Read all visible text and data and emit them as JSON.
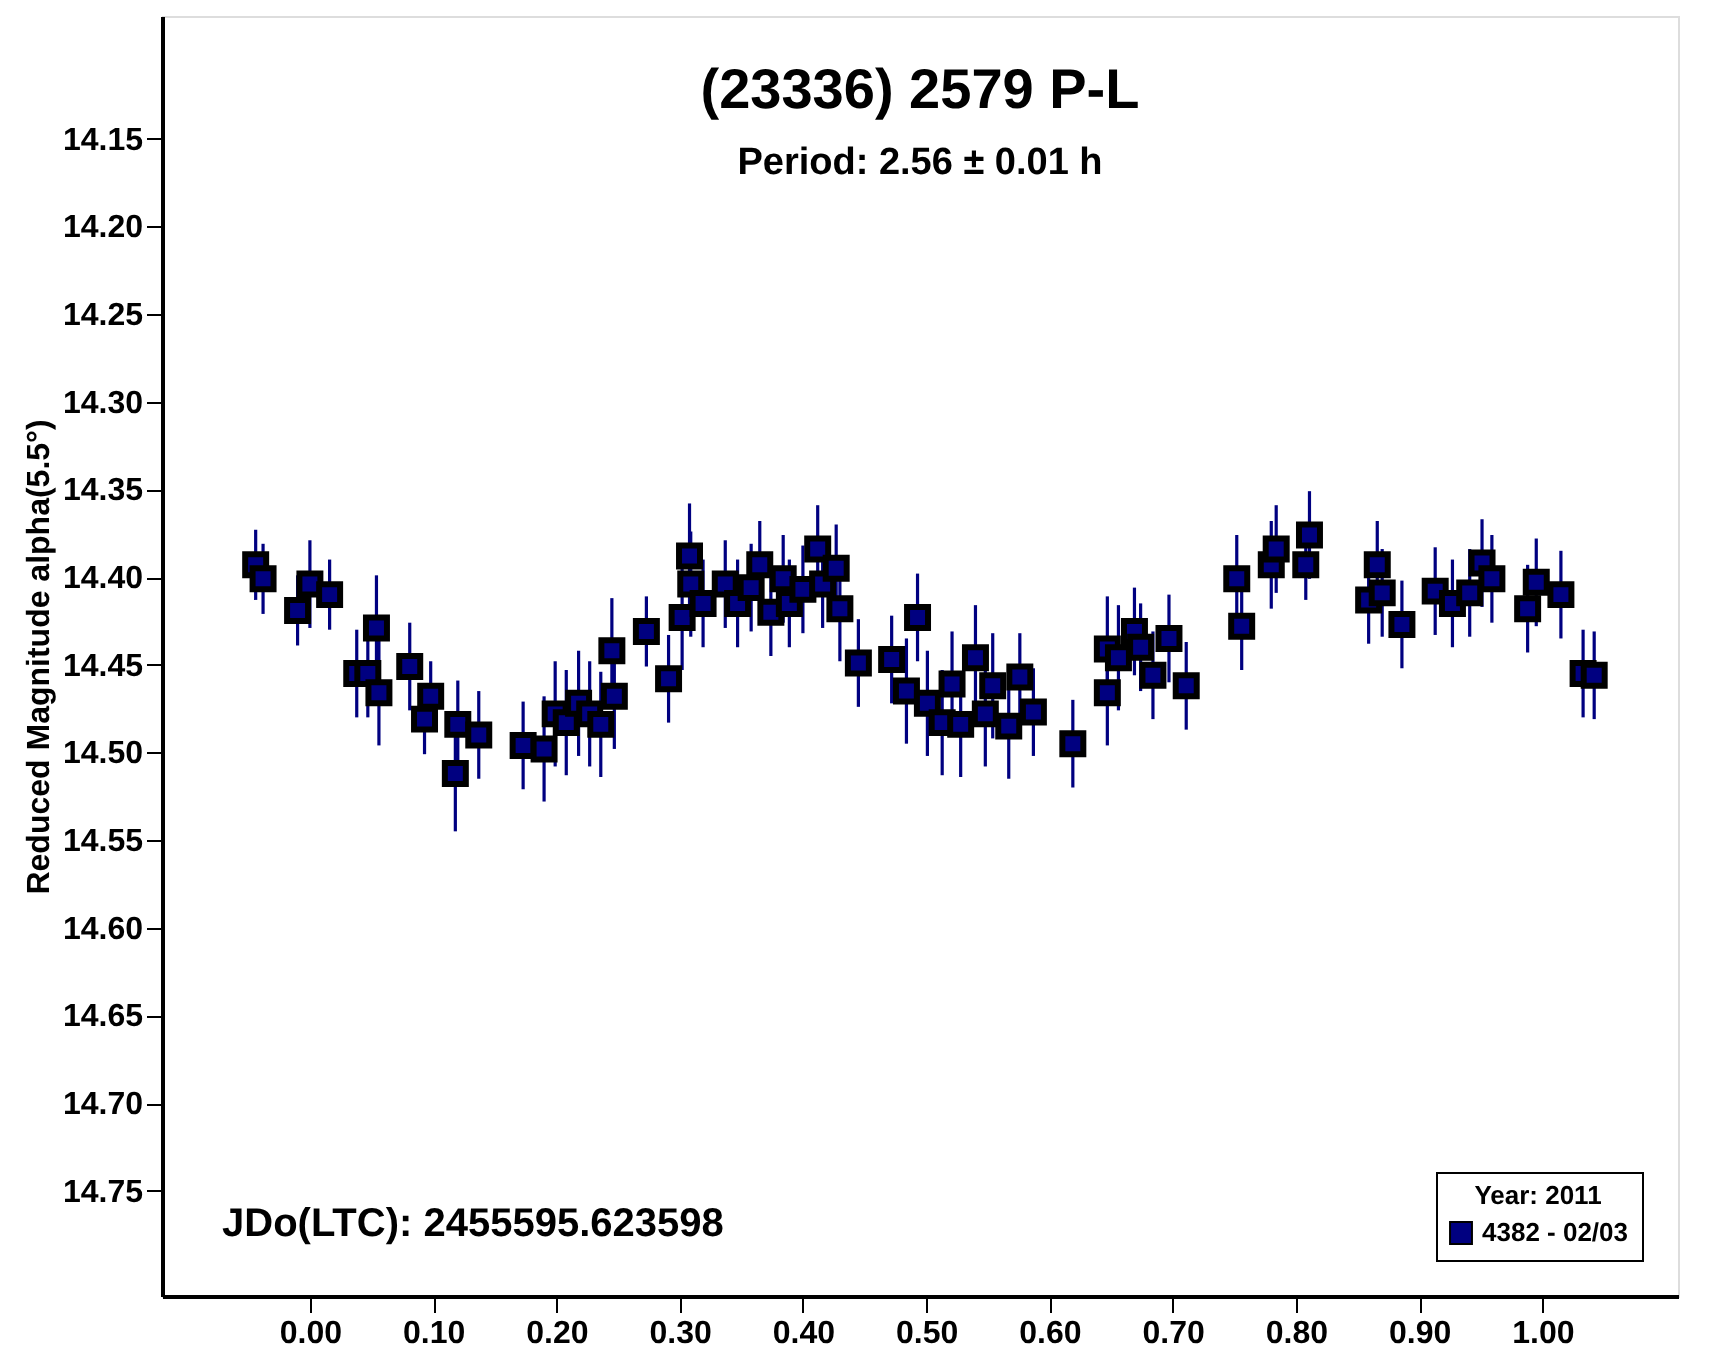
{
  "chart_data": {
    "type": "scatter",
    "title": "(23336) 2579 P-L",
    "subtitle": "Period: 2.56 ± 0.01 h",
    "ylabel": "Reduced Magnitude alpha(5.5°)",
    "legend_title": "Year: 2011",
    "legend": "bottom right",
    "marker": "square",
    "grid": false,
    "annotations": [
      "JDo(LTC): 2455595.623598"
    ],
    "xlim": [
      -0.12,
      1.11
    ],
    "ylim": [
      14.81,
      14.08
    ],
    "xticks": [
      {
        "value": 0,
        "label": "0.00"
      },
      {
        "value": 0.1,
        "label": "0.10"
      },
      {
        "value": 0.2,
        "label": "0.20"
      },
      {
        "value": 0.3,
        "label": "0.30"
      },
      {
        "value": 0.4,
        "label": "0.40"
      },
      {
        "value": 0.5,
        "label": "0.50"
      },
      {
        "value": 0.6,
        "label": "0.60"
      },
      {
        "value": 0.7,
        "label": "0.70"
      },
      {
        "value": 0.8,
        "label": "0.80"
      },
      {
        "value": 0.9,
        "label": "0.90"
      },
      {
        "value": 1,
        "label": "1.00"
      }
    ],
    "yticks": [
      14.15,
      {
        "value": 14.2,
        "label": "14.20"
      },
      14.25,
      {
        "value": 14.3,
        "label": "14.30"
      },
      14.35,
      {
        "value": 14.4,
        "label": "14.40"
      },
      14.45,
      {
        "value": 14.5,
        "label": "14.50"
      },
      14.55,
      {
        "value": 14.6,
        "label": "14.60"
      },
      14.65,
      {
        "value": 14.7,
        "label": "14.70"
      },
      14.75
    ],
    "x": [
      -0.044,
      -0.038,
      -0.01,
      0.0,
      0.016,
      0.038,
      0.047,
      0.054,
      0.056,
      0.081,
      0.093,
      0.098,
      0.118,
      0.12,
      0.137,
      0.173,
      0.19,
      0.199,
      0.208,
      0.218,
      0.227,
      0.236,
      0.245,
      0.247,
      0.273,
      0.291,
      0.302,
      0.309,
      0.308,
      0.319,
      0.337,
      0.347,
      0.358,
      0.365,
      0.374,
      0.384,
      0.389,
      0.4,
      0.412,
      0.416,
      0.427,
      0.43,
      0.445,
      0.472,
      0.484,
      0.493,
      0.501,
      0.513,
      0.521,
      0.528,
      0.54,
      0.548,
      0.554,
      0.567,
      0.576,
      0.587,
      0.619,
      0.647,
      0.647,
      0.656,
      0.669,
      0.674,
      0.684,
      0.697,
      0.711,
      0.752,
      0.756,
      0.78,
      0.784,
      0.808,
      0.811,
      0.859,
      0.866,
      0.87,
      0.886,
      0.913,
      0.927,
      0.941,
      0.951,
      0.959,
      0.988,
      0.995,
      1.015,
      1.033,
      1.042
    ],
    "series": [
      {
        "name": "4382 - 02/03",
        "color": "#000080",
        "values": [
          14.393,
          14.401,
          14.419,
          14.404,
          14.41,
          14.455,
          14.455,
          14.429,
          14.466,
          14.451,
          14.481,
          14.468,
          14.512,
          14.484,
          14.49,
          14.496,
          14.498,
          14.478,
          14.483,
          14.472,
          14.478,
          14.484,
          14.442,
          14.468,
          14.431,
          14.458,
          14.423,
          14.404,
          14.388,
          14.415,
          14.404,
          14.415,
          14.406,
          14.393,
          14.42,
          14.401,
          14.415,
          14.407,
          14.384,
          14.404,
          14.395,
          14.418,
          14.449,
          14.447,
          14.465,
          14.423,
          14.472,
          14.483,
          14.461,
          14.484,
          14.446,
          14.478,
          14.462,
          14.485,
          14.457,
          14.477,
          14.495,
          14.441,
          14.466,
          14.446,
          14.431,
          14.44,
          14.456,
          14.435,
          14.462,
          14.401,
          14.428,
          14.393,
          14.384,
          14.393,
          14.376,
          14.413,
          14.393,
          14.409,
          14.427,
          14.408,
          14.415,
          14.409,
          14.392,
          14.401,
          14.418,
          14.403,
          14.41,
          14.455,
          14.456
        ],
        "errors": [
          0.02,
          0.02,
          0.02,
          0.025,
          0.02,
          0.025,
          0.025,
          0.03,
          0.03,
          0.025,
          0.02,
          0.02,
          0.033,
          0.025,
          0.025,
          0.025,
          0.03,
          0.03,
          0.03,
          0.03,
          0.03,
          0.03,
          0.03,
          0.03,
          0.02,
          0.025,
          0.03,
          0.03,
          0.03,
          0.025,
          0.025,
          0.025,
          0.025,
          0.025,
          0.025,
          0.025,
          0.025,
          0.025,
          0.025,
          0.025,
          0.025,
          0.03,
          0.025,
          0.025,
          0.03,
          0.025,
          0.03,
          0.03,
          0.03,
          0.03,
          0.03,
          0.03,
          0.03,
          0.03,
          0.025,
          0.025,
          0.025,
          0.03,
          0.03,
          0.03,
          0.025,
          0.025,
          0.025,
          0.025,
          0.025,
          0.025,
          0.025,
          0.025,
          0.025,
          0.02,
          0.025,
          0.025,
          0.025,
          0.025,
          0.025,
          0.025,
          0.025,
          0.025,
          0.025,
          0.025,
          0.025,
          0.025,
          0.025,
          0.025,
          0.025
        ]
      }
    ]
  }
}
